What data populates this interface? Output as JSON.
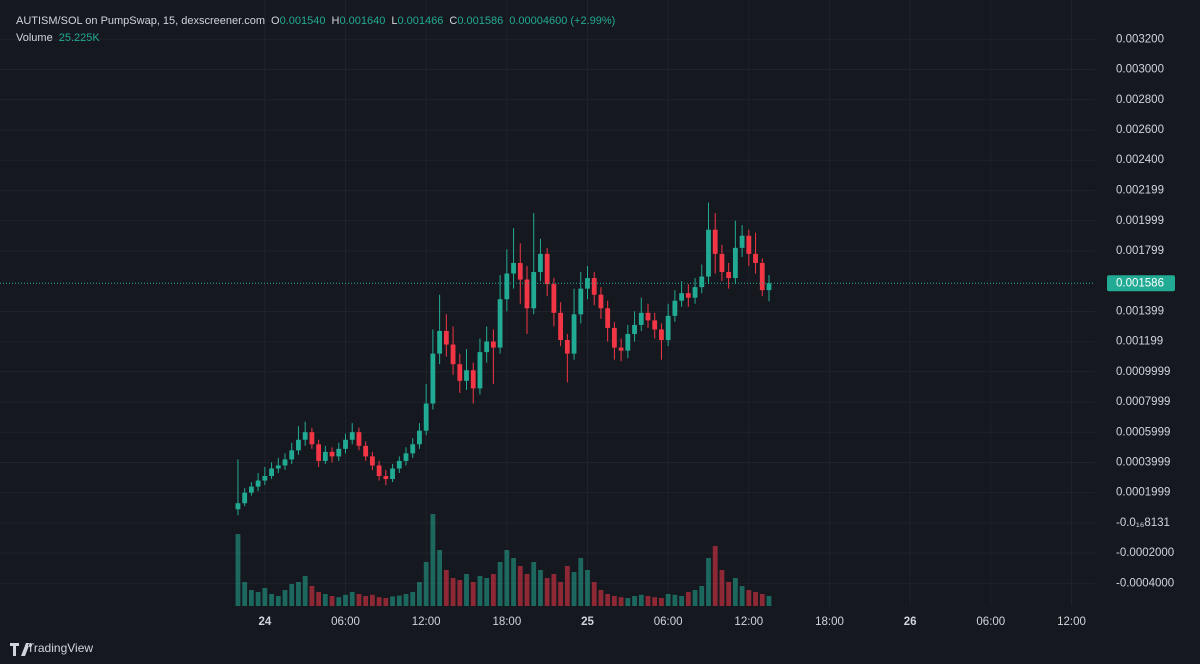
{
  "chart_data": {
    "type": "candlestick",
    "title": "AUTISM/SOL on PumpSwap, 15, dexscreener.com",
    "legend": {
      "open_label": "O",
      "open": "0.001540",
      "high_label": "H",
      "high": "0.001640",
      "low_label": "L",
      "low": "0.001466",
      "close_label": "C",
      "close": "0.001586",
      "change": "0.00004600 (+2.99%)",
      "volume_label": "Volume",
      "volume": "25.225K"
    },
    "up_color": "#22ab94",
    "down_color": "#f23645",
    "open": [
      9e-05,
      0.00013,
      0.0002,
      0.00024,
      0.00028,
      0.00031,
      0.00036,
      0.00038,
      0.00042,
      0.00048,
      0.00055,
      0.0006,
      0.00052,
      0.00041,
      0.00047,
      0.00044,
      0.00049,
      0.00055,
      0.0006,
      0.00051,
      0.00044,
      0.00038,
      0.00031,
      0.00029,
      0.00036,
      0.00041,
      0.00046,
      0.00052,
      0.00061,
      0.00079,
      0.00112,
      0.00127,
      0.00118,
      0.00105,
      0.00094,
      0.00101,
      0.00089,
      0.00113,
      0.0012,
      0.00116,
      0.00148,
      0.00165,
      0.00172,
      0.00161,
      0.00142,
      0.00166,
      0.00178,
      0.00158,
      0.00139,
      0.00121,
      0.00112,
      0.00138,
      0.00155,
      0.00162,
      0.00151,
      0.00142,
      0.00129,
      0.00116,
      0.00114,
      0.00125,
      0.00131,
      0.00139,
      0.00134,
      0.00128,
      0.00121,
      0.00137,
      0.00147,
      0.00152,
      0.00149,
      0.00156,
      0.00163,
      0.00194,
      0.00178,
      0.00166,
      0.00162,
      0.00182,
      0.0019,
      0.00178,
      0.00172,
      0.00154
    ],
    "high": [
      0.00042,
      0.00023,
      0.00027,
      0.00033,
      0.00037,
      0.0004,
      0.00043,
      0.00046,
      0.00053,
      0.00064,
      0.00067,
      0.00063,
      0.00055,
      0.00051,
      0.0005,
      0.00053,
      0.00059,
      0.00066,
      0.00063,
      0.00054,
      0.00047,
      0.00041,
      0.00035,
      0.00039,
      0.00044,
      0.0005,
      0.00056,
      0.00066,
      0.00092,
      0.00128,
      0.00151,
      0.00138,
      0.0013,
      0.00112,
      0.00115,
      0.00106,
      0.00122,
      0.0013,
      0.00128,
      0.00164,
      0.00181,
      0.00195,
      0.00185,
      0.0017,
      0.00205,
      0.00188,
      0.00182,
      0.00162,
      0.00146,
      0.00125,
      0.00155,
      0.00166,
      0.0017,
      0.00166,
      0.00156,
      0.00147,
      0.00133,
      0.00122,
      0.00131,
      0.0014,
      0.00149,
      0.00145,
      0.00139,
      0.00132,
      0.00145,
      0.00154,
      0.0016,
      0.00158,
      0.00162,
      0.00171,
      0.00212,
      0.00205,
      0.00184,
      0.00172,
      0.002,
      0.00197,
      0.00194,
      0.00192,
      0.00175,
      0.00164
    ],
    "low": [
      5e-05,
      0.00011,
      0.00018,
      0.00021,
      0.00025,
      0.00029,
      0.00033,
      0.00035,
      0.00039,
      0.00045,
      0.00051,
      0.00049,
      0.00037,
      0.00039,
      0.0004,
      0.00041,
      0.00046,
      0.00052,
      0.00048,
      0.00041,
      0.00035,
      0.00028,
      0.00025,
      0.00027,
      0.00033,
      0.00038,
      0.00043,
      0.00049,
      0.00058,
      0.00075,
      0.00105,
      0.0011,
      0.00098,
      0.00086,
      0.00088,
      0.00079,
      0.00085,
      0.00106,
      0.00092,
      0.00112,
      0.0014,
      0.00155,
      0.00145,
      0.00125,
      0.00138,
      0.0016,
      0.0015,
      0.0013,
      0.00117,
      0.00093,
      0.00108,
      0.00132,
      0.00148,
      0.00144,
      0.00135,
      0.0012,
      0.00108,
      0.00107,
      0.00109,
      0.0012,
      0.00127,
      0.00129,
      0.00122,
      0.00108,
      0.00117,
      0.00133,
      0.00143,
      0.00143,
      0.00145,
      0.00152,
      0.00158,
      0.00165,
      0.0016,
      0.00155,
      0.00158,
      0.00176,
      0.0017,
      0.00165,
      0.0015,
      0.001466
    ],
    "close": [
      0.00013,
      0.0002,
      0.00024,
      0.00028,
      0.00031,
      0.00036,
      0.00038,
      0.00042,
      0.00048,
      0.00055,
      0.0006,
      0.00052,
      0.00041,
      0.00047,
      0.00044,
      0.00049,
      0.00055,
      0.0006,
      0.00051,
      0.00044,
      0.00038,
      0.00031,
      0.00029,
      0.00036,
      0.00041,
      0.00046,
      0.00052,
      0.00061,
      0.00079,
      0.00112,
      0.00127,
      0.00118,
      0.00105,
      0.00094,
      0.00101,
      0.00089,
      0.00113,
      0.0012,
      0.00116,
      0.00148,
      0.00165,
      0.00172,
      0.00161,
      0.00142,
      0.00166,
      0.00178,
      0.00158,
      0.00139,
      0.00121,
      0.00112,
      0.00138,
      0.00155,
      0.00162,
      0.00151,
      0.00142,
      0.00129,
      0.00116,
      0.00114,
      0.00125,
      0.00131,
      0.00139,
      0.00134,
      0.00128,
      0.00121,
      0.00137,
      0.00147,
      0.00152,
      0.00149,
      0.00156,
      0.00163,
      0.00194,
      0.00178,
      0.00166,
      0.00162,
      0.00182,
      0.0019,
      0.00178,
      0.00172,
      0.00154,
      0.001586
    ],
    "volume": [
      180000,
      60000,
      40000,
      35000,
      45000,
      30000,
      25000,
      40000,
      55000,
      60000,
      75000,
      50000,
      35000,
      30000,
      25000,
      22000,
      28000,
      35000,
      30000,
      25000,
      28000,
      22000,
      20000,
      24000,
      26000,
      30000,
      35000,
      60000,
      110000,
      230000,
      140000,
      90000,
      70000,
      65000,
      80000,
      60000,
      75000,
      70000,
      80000,
      110000,
      140000,
      120000,
      100000,
      80000,
      110000,
      90000,
      70000,
      80000,
      60000,
      100000,
      85000,
      120000,
      90000,
      60000,
      40000,
      30000,
      25000,
      22000,
      20000,
      25000,
      28000,
      25000,
      22000,
      20000,
      30000,
      28000,
      25000,
      35000,
      40000,
      50000,
      120000,
      150000,
      90000,
      60000,
      70000,
      50000,
      40000,
      35000,
      30000,
      25225
    ],
    "xlim": [
      -35.4,
      127.5
    ],
    "xticks": [
      {
        "value": 4,
        "label": "24"
      },
      {
        "value": 16,
        "label": "06:00"
      },
      {
        "value": 28,
        "label": "12:00"
      },
      {
        "value": 40,
        "label": "18:00"
      },
      {
        "value": 52,
        "label": "25"
      },
      {
        "value": 64,
        "label": "06:00"
      },
      {
        "value": 76,
        "label": "12:00"
      },
      {
        "value": 88,
        "label": "18:00"
      },
      {
        "value": 100,
        "label": "26"
      },
      {
        "value": 112,
        "label": "06:00"
      },
      {
        "value": 124,
        "label": "12:00"
      }
    ],
    "ylim": [
      -0.00055,
      0.00346
    ],
    "yticks": [
      {
        "value": 0.0032,
        "label": "0.003200"
      },
      {
        "value": 0.003,
        "label": "0.003000"
      },
      {
        "value": 0.0028,
        "label": "0.002800"
      },
      {
        "value": 0.0026,
        "label": "0.002600"
      },
      {
        "value": 0.0024,
        "label": "0.002400"
      },
      0.002199,
      0.001999,
      0.001799,
      0.001399,
      0.001199,
      0.0009999,
      0.0007999,
      0.0005999,
      0.0003999,
      0.0001999,
      {
        "value": -8.131e-17,
        "label": "-0.0₁₆8131"
      },
      {
        "value": -0.0002,
        "label": "-0.0002000"
      },
      {
        "value": -0.0004,
        "label": "-0.0004000"
      }
    ],
    "last_price": {
      "value": 0.001586,
      "label": "0.001586"
    },
    "grid": true,
    "branding": "TradingView"
  }
}
